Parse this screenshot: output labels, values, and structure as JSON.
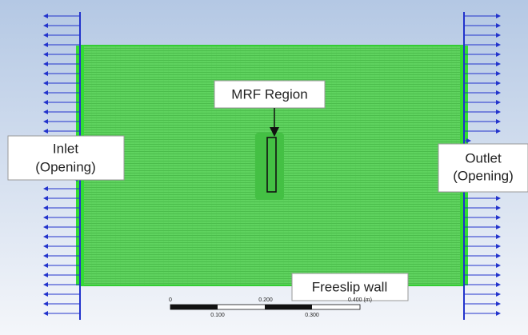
{
  "labels": {
    "mrf": "MRF Region",
    "inlet": [
      "Inlet",
      "(Opening)"
    ],
    "outlet": [
      "Outlet",
      "(Opening)"
    ],
    "wall": "Freeslip wall"
  },
  "scale": {
    "top": [
      "0",
      "0.200",
      "0.400 (m)"
    ],
    "bottom": [
      "0.100",
      "0.300"
    ]
  }
}
